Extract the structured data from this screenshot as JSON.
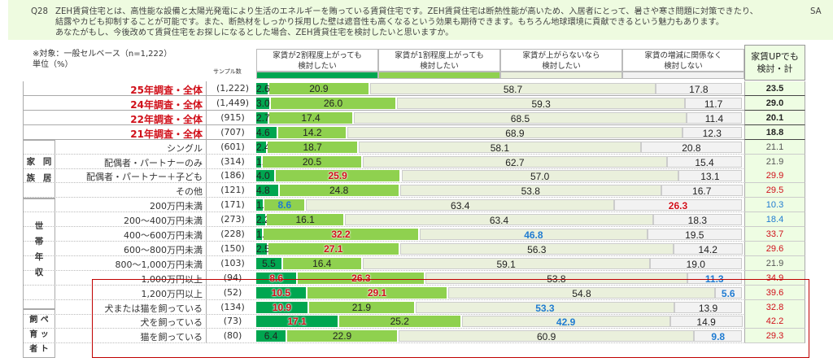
{
  "question": {
    "number": "Q28",
    "text": "ZEH賃貸住宅とは、高性能な設備と太陽光発電により生活のエネルギーを賄っている賃貸住宅です。ZEH賃貸住宅は断熱性能が高いため、入居者にとって、暑さや寒さ問題に対策できたり、\n結露やカビも抑制することが可能です。また、断熱材をしっかり採用した壁は遮音性も高くなるという効果も期待できます。もちろん地球環境に貢献できるという魅力もあります。\nあなたがもし、今後改めて賃貸住宅をお探しになるとした場合、ZEH賃貸住宅を検討したいと思いますか。",
    "type": "SA"
  },
  "note": {
    "target": "※対象：一般セルベース（n=1,222）",
    "unit": "単位（%）",
    "sample_header": "サンプル数"
  },
  "groups": {
    "household": "家 同\n族 居",
    "income": "世\n帯\n年\n収",
    "pet": "飼 ペ\n育 ッ\n者 ト"
  },
  "chart_data": {
    "type": "bar",
    "stacked": true,
    "orientation": "horizontal",
    "xlim": [
      0,
      100
    ],
    "legend": [
      {
        "label": "家賃が2割程度上がっても\n検討したい",
        "color": "#00a650"
      },
      {
        "label": "家賃が1割程度上がっても\n検討したい",
        "color": "#8fd14f"
      },
      {
        "label": "家賃が上がらないなら\n検討したい",
        "color": "#eaf0dc"
      },
      {
        "label": "家賃の増減に関係なく\n検討しない",
        "color": "#f2f2f2"
      }
    ],
    "total_header": "家賃UPでも\n検討・計",
    "rows": [
      {
        "label": "25年調査・全体",
        "n": "(1,222)",
        "values": [
          2.6,
          20.9,
          58.7,
          17.8
        ],
        "hl": [
          "",
          "",
          "",
          ""
        ],
        "total": "23.5",
        "tc": "k"
      },
      {
        "label": "24年調査・全体",
        "n": "(1,449)",
        "values": [
          3.0,
          26.0,
          59.3,
          11.7
        ],
        "hl": [
          "",
          "",
          "",
          ""
        ],
        "total": "29.0",
        "tc": "k"
      },
      {
        "label": "22年調査・全体",
        "n": "(915)",
        "values": [
          2.7,
          17.4,
          68.5,
          11.4
        ],
        "hl": [
          "",
          "",
          "",
          ""
        ],
        "total": "20.1",
        "tc": "k"
      },
      {
        "label": "21年調査・全体",
        "n": "(707)",
        "values": [
          4.6,
          14.2,
          68.9,
          12.3
        ],
        "hl": [
          "",
          "",
          "",
          ""
        ],
        "total": "18.8",
        "tc": "k"
      },
      {
        "label": "シングル",
        "n": "(601)",
        "values": [
          2.4,
          18.7,
          58.1,
          20.8
        ],
        "hl": [
          "",
          "",
          "",
          ""
        ],
        "total": "21.1",
        "tc": "g"
      },
      {
        "label": "配偶者・パートナーのみ",
        "n": "(314)",
        "values": [
          1.4,
          20.5,
          62.7,
          15.4
        ],
        "hl": [
          "",
          "",
          "",
          ""
        ],
        "total": "21.9",
        "tc": "g"
      },
      {
        "label": "配偶者・パートナー＋子ども",
        "n": "(186)",
        "values": [
          4.0,
          25.9,
          57.0,
          13.1
        ],
        "hl": [
          "",
          "r",
          "",
          ""
        ],
        "total": "29.9",
        "tc": "r"
      },
      {
        "label": "その他",
        "n": "(121)",
        "values": [
          4.8,
          24.8,
          53.8,
          16.7
        ],
        "hl": [
          "",
          "",
          "",
          ""
        ],
        "total": "29.5",
        "tc": "r"
      },
      {
        "label": "200万円未満",
        "n": "(171)",
        "values": [
          1.7,
          8.6,
          63.4,
          26.3
        ],
        "hl": [
          "",
          "b",
          "",
          "r"
        ],
        "total": "10.3",
        "tc": "b"
      },
      {
        "label": "200～400万円未満",
        "n": "(273)",
        "values": [
          2.2,
          16.1,
          63.4,
          18.3
        ],
        "hl": [
          "",
          "",
          "",
          ""
        ],
        "total": "18.4",
        "tc": "b"
      },
      {
        "label": "400～600万円未満",
        "n": "(228)",
        "values": [
          1.5,
          32.2,
          46.8,
          19.5
        ],
        "hl": [
          "",
          "r",
          "b",
          ""
        ],
        "total": "33.7",
        "tc": "r"
      },
      {
        "label": "600～800万円未満",
        "n": "(150)",
        "values": [
          2.5,
          27.1,
          56.3,
          14.2
        ],
        "hl": [
          "",
          "r",
          "",
          ""
        ],
        "total": "29.6",
        "tc": "r"
      },
      {
        "label": "800～1,000万円未満",
        "n": "(103)",
        "values": [
          5.5,
          16.4,
          59.1,
          19.0
        ],
        "hl": [
          "",
          "",
          "",
          ""
        ],
        "total": "21.9",
        "tc": "g"
      },
      {
        "label": "1,000万円以上",
        "n": "(94)",
        "values": [
          8.6,
          26.3,
          53.8,
          11.3
        ],
        "hl": [
          "r",
          "r",
          "",
          "b"
        ],
        "total": "34.9",
        "tc": "r"
      },
      {
        "label": "1,200万円以上",
        "n": "(52)",
        "values": [
          10.5,
          29.1,
          54.8,
          5.6
        ],
        "hl": [
          "r",
          "r",
          "",
          "b"
        ],
        "total": "39.6",
        "tc": "r"
      },
      {
        "label": "犬または猫を飼っている",
        "n": "(134)",
        "values": [
          10.9,
          21.9,
          53.3,
          13.9
        ],
        "hl": [
          "r",
          "",
          "b",
          ""
        ],
        "total": "32.8",
        "tc": "r"
      },
      {
        "label": "犬を飼っている",
        "n": "(73)",
        "values": [
          17.1,
          25.2,
          42.9,
          14.9
        ],
        "hl": [
          "r",
          "",
          "b",
          ""
        ],
        "total": "42.2",
        "tc": "r"
      },
      {
        "label": "猫を飼っている",
        "n": "(80)",
        "values": [
          6.4,
          22.9,
          60.9,
          9.8
        ],
        "hl": [
          "",
          "",
          "",
          "b"
        ],
        "total": "29.3",
        "tc": "r"
      }
    ]
  }
}
